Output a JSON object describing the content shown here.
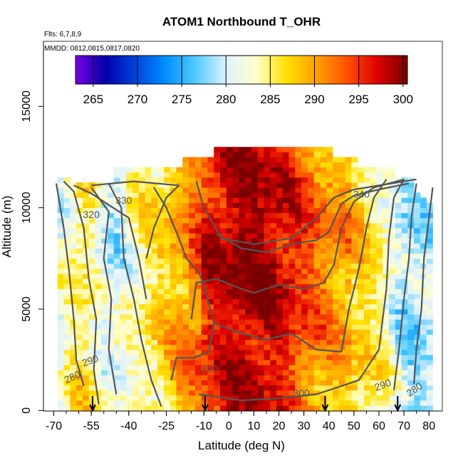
{
  "chart_data": {
    "type": "heatmap",
    "title": "ATOM1 Northbound T_OHR",
    "subtitle_flights": "Flts: 6,7,8,9",
    "subtitle_dates": "MMDD: 0812,0815,0817,0820",
    "xlabel": "Latitude (deg N)",
    "ylabel": "Altitude (m)",
    "xlim": [
      -70,
      82
    ],
    "ylim": [
      0,
      17500
    ],
    "x_ticks": [
      -70,
      -55,
      -40,
      -25,
      -10,
      0,
      10,
      20,
      30,
      40,
      50,
      60,
      70,
      80
    ],
    "y_ticks": [
      0,
      5000,
      10000,
      15000
    ],
    "colorbar": {
      "ticks": [
        265,
        270,
        275,
        280,
        285,
        290,
        295,
        300
      ],
      "range": [
        263,
        300.5
      ],
      "colors": [
        "#7a00e6",
        "#0000aa",
        "#0044dd",
        "#0090ff",
        "#55ccff",
        "#dff2ff",
        "#ffffcc",
        "#ffe000",
        "#ffa000",
        "#ff5000",
        "#dd0000",
        "#7a0000"
      ]
    },
    "contours": [
      {
        "label": "280",
        "value": 280
      },
      {
        "label": "290",
        "value": 290
      },
      {
        "label": "300",
        "value": 300
      },
      {
        "label": "310",
        "value": 310
      },
      {
        "label": "320",
        "value": 320
      },
      {
        "label": "330",
        "value": 330
      },
      {
        "label": "340",
        "value": 340
      }
    ],
    "arrow_latitudes": [
      -54.5,
      -9.5,
      38.5,
      67.5
    ],
    "temperature_profile": {
      "altitudes": [
        0,
        1000,
        2000,
        3000,
        4000,
        5000,
        6000,
        7000,
        8000,
        9000,
        10000,
        11000,
        12000,
        13000
      ],
      "latitudes": [
        -70,
        -60,
        -50,
        -40,
        -30,
        -20,
        -10,
        0,
        10,
        20,
        30,
        40,
        50,
        60,
        70,
        80
      ],
      "approx_kelvin_at_max_extent": [
        [
          279,
          280,
          282,
          285,
          289,
          292,
          296,
          298,
          299,
          298,
          297,
          296,
          293,
          287,
          282,
          279
        ],
        [
          277,
          278,
          280,
          283,
          287,
          291,
          295,
          297,
          298,
          297,
          296,
          295,
          292,
          286,
          280,
          277
        ],
        [
          275,
          276,
          278,
          281,
          286,
          290,
          294,
          296,
          297,
          296,
          295,
          294,
          291,
          285,
          279,
          276
        ]
      ]
    }
  }
}
